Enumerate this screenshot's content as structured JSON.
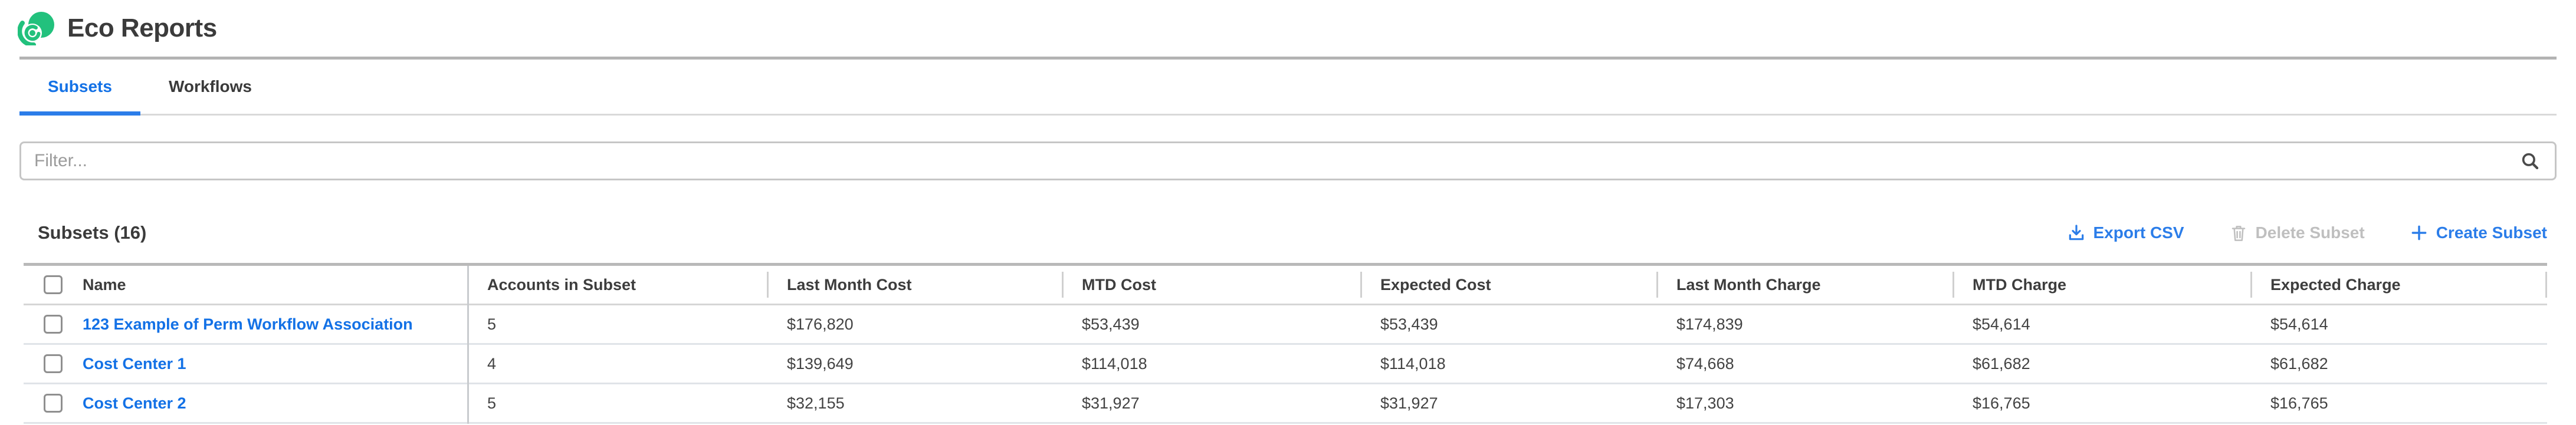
{
  "app": {
    "title": "Eco Reports"
  },
  "tabs": {
    "subsets": "Subsets",
    "workflows": "Workflows"
  },
  "filter": {
    "placeholder": "Filter...",
    "value": ""
  },
  "toolbar": {
    "heading": "Subsets (16)",
    "export_csv": "Export CSV",
    "delete_subset": "Delete Subset",
    "create_plus": "+",
    "create_subset": "Create Subset"
  },
  "table": {
    "columns": [
      "Name",
      "Accounts in Subset",
      "Last Month Cost",
      "MTD Cost",
      "Expected Cost",
      "Last Month Charge",
      "MTD Charge",
      "Expected Charge"
    ],
    "rows": [
      {
        "name": "123 Example of Perm Workflow Association",
        "accounts_in_subset": "5",
        "last_month_cost": "$176,820",
        "mtd_cost": "$53,439",
        "expected_cost": "$53,439",
        "last_month_charge": "$174,839",
        "mtd_charge": "$54,614",
        "expected_charge": "$54,614"
      },
      {
        "name": "Cost Center 1",
        "accounts_in_subset": "4",
        "last_month_cost": "$139,649",
        "mtd_cost": "$114,018",
        "expected_cost": "$114,018",
        "last_month_charge": "$74,668",
        "mtd_charge": "$61,682",
        "expected_charge": "$61,682"
      },
      {
        "name": "Cost Center 2",
        "accounts_in_subset": "5",
        "last_month_cost": "$32,155",
        "mtd_cost": "$31,927",
        "expected_cost": "$31,927",
        "last_month_charge": "$17,303",
        "mtd_charge": "$16,765",
        "expected_charge": "$16,765"
      }
    ]
  },
  "icons": {
    "logo": "eco-brand-logo",
    "filter": "search-icon",
    "export": "download-icon",
    "delete": "trash-icon",
    "create": "plus-icon"
  },
  "colors": {
    "brand_green": "#22c17d",
    "accent_blue": "#1371e6",
    "button_blue": "#2b7de9",
    "disabled_gray": "#bfbfbf",
    "text_dark": "#3d3d3d"
  }
}
